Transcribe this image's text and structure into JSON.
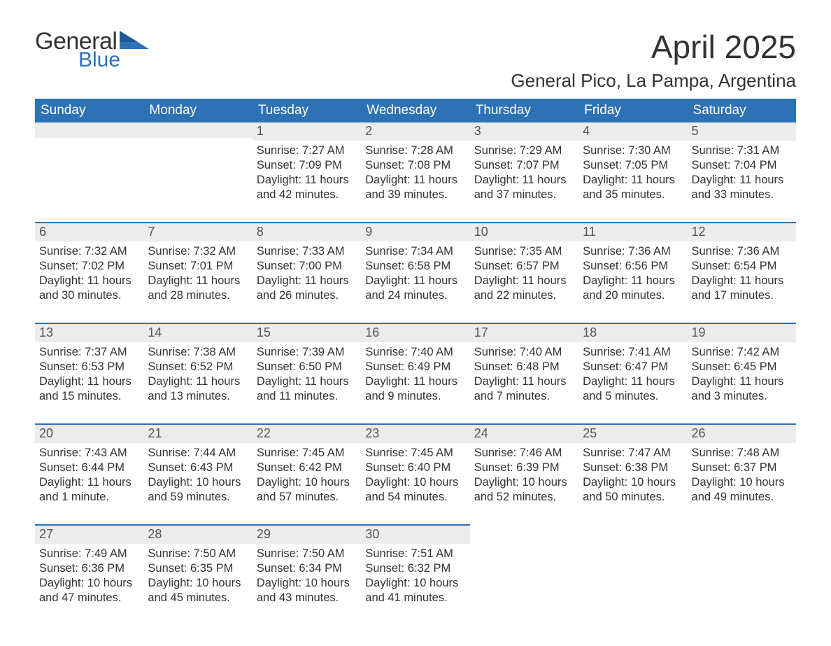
{
  "logo": {
    "word1": "General",
    "word2": "Blue",
    "word1_color": "#333333",
    "word2_color": "#2d72b5",
    "triangle_color": "#2d72b5"
  },
  "title": "April 2025",
  "location": "General Pico, La Pampa, Argentina",
  "colors": {
    "header_bg": "#2d72b5",
    "header_text": "#ffffff",
    "daynum_bg": "#ececec",
    "row_divider": "#2d72b5",
    "body_text": "#333333"
  },
  "columns": [
    "Sunday",
    "Monday",
    "Tuesday",
    "Wednesday",
    "Thursday",
    "Friday",
    "Saturday"
  ],
  "weeks": [
    [
      {
        "day": "",
        "sunrise": "",
        "sunset": "",
        "daylight1": "",
        "daylight2": ""
      },
      {
        "day": "",
        "sunrise": "",
        "sunset": "",
        "daylight1": "",
        "daylight2": ""
      },
      {
        "day": "1",
        "sunrise": "Sunrise: 7:27 AM",
        "sunset": "Sunset: 7:09 PM",
        "daylight1": "Daylight: 11 hours",
        "daylight2": "and 42 minutes."
      },
      {
        "day": "2",
        "sunrise": "Sunrise: 7:28 AM",
        "sunset": "Sunset: 7:08 PM",
        "daylight1": "Daylight: 11 hours",
        "daylight2": "and 39 minutes."
      },
      {
        "day": "3",
        "sunrise": "Sunrise: 7:29 AM",
        "sunset": "Sunset: 7:07 PM",
        "daylight1": "Daylight: 11 hours",
        "daylight2": "and 37 minutes."
      },
      {
        "day": "4",
        "sunrise": "Sunrise: 7:30 AM",
        "sunset": "Sunset: 7:05 PM",
        "daylight1": "Daylight: 11 hours",
        "daylight2": "and 35 minutes."
      },
      {
        "day": "5",
        "sunrise": "Sunrise: 7:31 AM",
        "sunset": "Sunset: 7:04 PM",
        "daylight1": "Daylight: 11 hours",
        "daylight2": "and 33 minutes."
      }
    ],
    [
      {
        "day": "6",
        "sunrise": "Sunrise: 7:32 AM",
        "sunset": "Sunset: 7:02 PM",
        "daylight1": "Daylight: 11 hours",
        "daylight2": "and 30 minutes."
      },
      {
        "day": "7",
        "sunrise": "Sunrise: 7:32 AM",
        "sunset": "Sunset: 7:01 PM",
        "daylight1": "Daylight: 11 hours",
        "daylight2": "and 28 minutes."
      },
      {
        "day": "8",
        "sunrise": "Sunrise: 7:33 AM",
        "sunset": "Sunset: 7:00 PM",
        "daylight1": "Daylight: 11 hours",
        "daylight2": "and 26 minutes."
      },
      {
        "day": "9",
        "sunrise": "Sunrise: 7:34 AM",
        "sunset": "Sunset: 6:58 PM",
        "daylight1": "Daylight: 11 hours",
        "daylight2": "and 24 minutes."
      },
      {
        "day": "10",
        "sunrise": "Sunrise: 7:35 AM",
        "sunset": "Sunset: 6:57 PM",
        "daylight1": "Daylight: 11 hours",
        "daylight2": "and 22 minutes."
      },
      {
        "day": "11",
        "sunrise": "Sunrise: 7:36 AM",
        "sunset": "Sunset: 6:56 PM",
        "daylight1": "Daylight: 11 hours",
        "daylight2": "and 20 minutes."
      },
      {
        "day": "12",
        "sunrise": "Sunrise: 7:36 AM",
        "sunset": "Sunset: 6:54 PM",
        "daylight1": "Daylight: 11 hours",
        "daylight2": "and 17 minutes."
      }
    ],
    [
      {
        "day": "13",
        "sunrise": "Sunrise: 7:37 AM",
        "sunset": "Sunset: 6:53 PM",
        "daylight1": "Daylight: 11 hours",
        "daylight2": "and 15 minutes."
      },
      {
        "day": "14",
        "sunrise": "Sunrise: 7:38 AM",
        "sunset": "Sunset: 6:52 PM",
        "daylight1": "Daylight: 11 hours",
        "daylight2": "and 13 minutes."
      },
      {
        "day": "15",
        "sunrise": "Sunrise: 7:39 AM",
        "sunset": "Sunset: 6:50 PM",
        "daylight1": "Daylight: 11 hours",
        "daylight2": "and 11 minutes."
      },
      {
        "day": "16",
        "sunrise": "Sunrise: 7:40 AM",
        "sunset": "Sunset: 6:49 PM",
        "daylight1": "Daylight: 11 hours",
        "daylight2": "and 9 minutes."
      },
      {
        "day": "17",
        "sunrise": "Sunrise: 7:40 AM",
        "sunset": "Sunset: 6:48 PM",
        "daylight1": "Daylight: 11 hours",
        "daylight2": "and 7 minutes."
      },
      {
        "day": "18",
        "sunrise": "Sunrise: 7:41 AM",
        "sunset": "Sunset: 6:47 PM",
        "daylight1": "Daylight: 11 hours",
        "daylight2": "and 5 minutes."
      },
      {
        "day": "19",
        "sunrise": "Sunrise: 7:42 AM",
        "sunset": "Sunset: 6:45 PM",
        "daylight1": "Daylight: 11 hours",
        "daylight2": "and 3 minutes."
      }
    ],
    [
      {
        "day": "20",
        "sunrise": "Sunrise: 7:43 AM",
        "sunset": "Sunset: 6:44 PM",
        "daylight1": "Daylight: 11 hours",
        "daylight2": "and 1 minute."
      },
      {
        "day": "21",
        "sunrise": "Sunrise: 7:44 AM",
        "sunset": "Sunset: 6:43 PM",
        "daylight1": "Daylight: 10 hours",
        "daylight2": "and 59 minutes."
      },
      {
        "day": "22",
        "sunrise": "Sunrise: 7:45 AM",
        "sunset": "Sunset: 6:42 PM",
        "daylight1": "Daylight: 10 hours",
        "daylight2": "and 57 minutes."
      },
      {
        "day": "23",
        "sunrise": "Sunrise: 7:45 AM",
        "sunset": "Sunset: 6:40 PM",
        "daylight1": "Daylight: 10 hours",
        "daylight2": "and 54 minutes."
      },
      {
        "day": "24",
        "sunrise": "Sunrise: 7:46 AM",
        "sunset": "Sunset: 6:39 PM",
        "daylight1": "Daylight: 10 hours",
        "daylight2": "and 52 minutes."
      },
      {
        "day": "25",
        "sunrise": "Sunrise: 7:47 AM",
        "sunset": "Sunset: 6:38 PM",
        "daylight1": "Daylight: 10 hours",
        "daylight2": "and 50 minutes."
      },
      {
        "day": "26",
        "sunrise": "Sunrise: 7:48 AM",
        "sunset": "Sunset: 6:37 PM",
        "daylight1": "Daylight: 10 hours",
        "daylight2": "and 49 minutes."
      }
    ],
    [
      {
        "day": "27",
        "sunrise": "Sunrise: 7:49 AM",
        "sunset": "Sunset: 6:36 PM",
        "daylight1": "Daylight: 10 hours",
        "daylight2": "and 47 minutes."
      },
      {
        "day": "28",
        "sunrise": "Sunrise: 7:50 AM",
        "sunset": "Sunset: 6:35 PM",
        "daylight1": "Daylight: 10 hours",
        "daylight2": "and 45 minutes."
      },
      {
        "day": "29",
        "sunrise": "Sunrise: 7:50 AM",
        "sunset": "Sunset: 6:34 PM",
        "daylight1": "Daylight: 10 hours",
        "daylight2": "and 43 minutes."
      },
      {
        "day": "30",
        "sunrise": "Sunrise: 7:51 AM",
        "sunset": "Sunset: 6:32 PM",
        "daylight1": "Daylight: 10 hours",
        "daylight2": "and 41 minutes."
      },
      {
        "day": "",
        "sunrise": "",
        "sunset": "",
        "daylight1": "",
        "daylight2": ""
      },
      {
        "day": "",
        "sunrise": "",
        "sunset": "",
        "daylight1": "",
        "daylight2": ""
      },
      {
        "day": "",
        "sunrise": "",
        "sunset": "",
        "daylight1": "",
        "daylight2": ""
      }
    ]
  ]
}
